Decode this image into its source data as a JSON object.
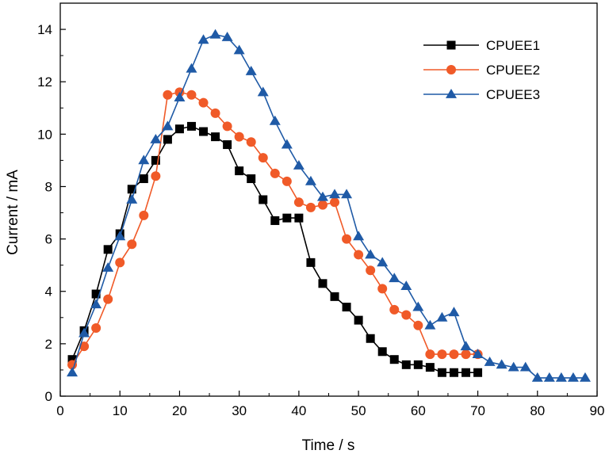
{
  "chart_data": {
    "type": "line",
    "xlabel": "Time / s",
    "ylabel": "Current / mA",
    "xlim": [
      0,
      90
    ],
    "ylim": [
      0,
      15
    ],
    "xticks": [
      0,
      10,
      20,
      30,
      40,
      50,
      60,
      70,
      80,
      90
    ],
    "yticks": [
      0,
      2,
      4,
      6,
      8,
      10,
      12,
      14
    ],
    "grid": false,
    "legend_position": "top-right",
    "series": [
      {
        "name": "CPUEE1",
        "color": "#000000",
        "marker": "square",
        "x": [
          2,
          4,
          6,
          8,
          10,
          12,
          14,
          16,
          18,
          20,
          22,
          24,
          26,
          28,
          30,
          32,
          34,
          36,
          38,
          40,
          42,
          44,
          46,
          48,
          50,
          52,
          54,
          56,
          58,
          60,
          62,
          64,
          66,
          68,
          70
        ],
        "y": [
          1.4,
          2.5,
          3.9,
          5.6,
          6.2,
          7.9,
          8.3,
          9.0,
          9.8,
          10.2,
          10.3,
          10.1,
          9.9,
          9.6,
          8.6,
          8.3,
          7.5,
          6.7,
          6.8,
          6.8,
          5.1,
          4.3,
          3.8,
          3.4,
          2.9,
          2.2,
          1.7,
          1.4,
          1.2,
          1.2,
          1.1,
          0.9,
          0.9,
          0.9,
          0.9
        ]
      },
      {
        "name": "CPUEE2",
        "color": "#F05A28",
        "marker": "circle",
        "x": [
          2,
          4,
          6,
          8,
          10,
          12,
          14,
          16,
          18,
          20,
          22,
          24,
          26,
          28,
          30,
          32,
          34,
          36,
          38,
          40,
          42,
          44,
          46,
          48,
          50,
          52,
          54,
          56,
          58,
          60,
          62,
          64,
          66,
          68,
          70
        ],
        "y": [
          1.2,
          1.9,
          2.6,
          3.7,
          5.1,
          5.8,
          6.9,
          8.4,
          11.5,
          11.6,
          11.5,
          11.2,
          10.8,
          10.3,
          9.9,
          9.7,
          9.1,
          8.5,
          8.2,
          7.4,
          7.2,
          7.3,
          7.4,
          6.0,
          5.4,
          4.8,
          4.1,
          3.3,
          3.1,
          2.7,
          1.6,
          1.6,
          1.6,
          1.6,
          1.6
        ]
      },
      {
        "name": "CPUEE3",
        "color": "#1F5AA6",
        "marker": "triangle",
        "x": [
          2,
          4,
          6,
          8,
          10,
          12,
          14,
          16,
          18,
          20,
          22,
          24,
          26,
          28,
          30,
          32,
          34,
          36,
          38,
          40,
          42,
          44,
          46,
          48,
          50,
          52,
          54,
          56,
          58,
          60,
          62,
          64,
          66,
          68,
          70,
          72,
          74,
          76,
          78,
          80,
          82,
          84,
          86,
          88
        ],
        "y": [
          0.9,
          2.4,
          3.5,
          4.9,
          6.1,
          7.5,
          9.0,
          9.8,
          10.3,
          11.4,
          12.5,
          13.6,
          13.8,
          13.7,
          13.2,
          12.4,
          11.6,
          10.5,
          9.6,
          8.8,
          8.2,
          7.6,
          7.7,
          7.7,
          6.1,
          5.4,
          5.1,
          4.5,
          4.2,
          3.4,
          2.7,
          3.0,
          3.2,
          1.9,
          1.6,
          1.3,
          1.2,
          1.1,
          1.1,
          0.7,
          0.7,
          0.7,
          0.7,
          0.7
        ]
      }
    ]
  }
}
